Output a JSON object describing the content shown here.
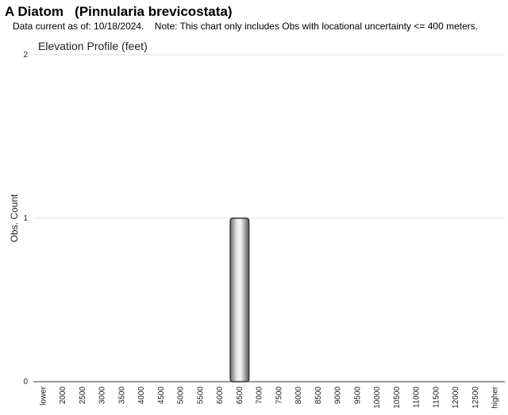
{
  "header": {
    "title": "A Diatom   (Pinnularia brevicostata)",
    "note": "Data current as of: 10/18/2024.    Note: This chart only includes Obs with locational uncertainty <= 400 meters."
  },
  "chart_data": {
    "type": "bar",
    "title": "Elevation Profile (feet)",
    "xlabel": "",
    "ylabel": "Obs. Count",
    "ylim": [
      0,
      2
    ],
    "yticks": [
      0,
      1,
      2
    ],
    "grid": true,
    "categories": [
      "lower",
      "2000",
      "2500",
      "3000",
      "3500",
      "4000",
      "4500",
      "5000",
      "5500",
      "6000",
      "6500",
      "7000",
      "7500",
      "8000",
      "8500",
      "9000",
      "9500",
      "10000",
      "10500",
      "11000",
      "11500",
      "12000",
      "12500",
      "higher"
    ],
    "values": [
      0,
      0,
      0,
      0,
      0,
      0,
      0,
      0,
      0,
      0,
      1,
      0,
      0,
      0,
      0,
      0,
      0,
      0,
      0,
      0,
      0,
      0,
      0,
      0
    ],
    "bar_color": "#9a9a9a"
  }
}
